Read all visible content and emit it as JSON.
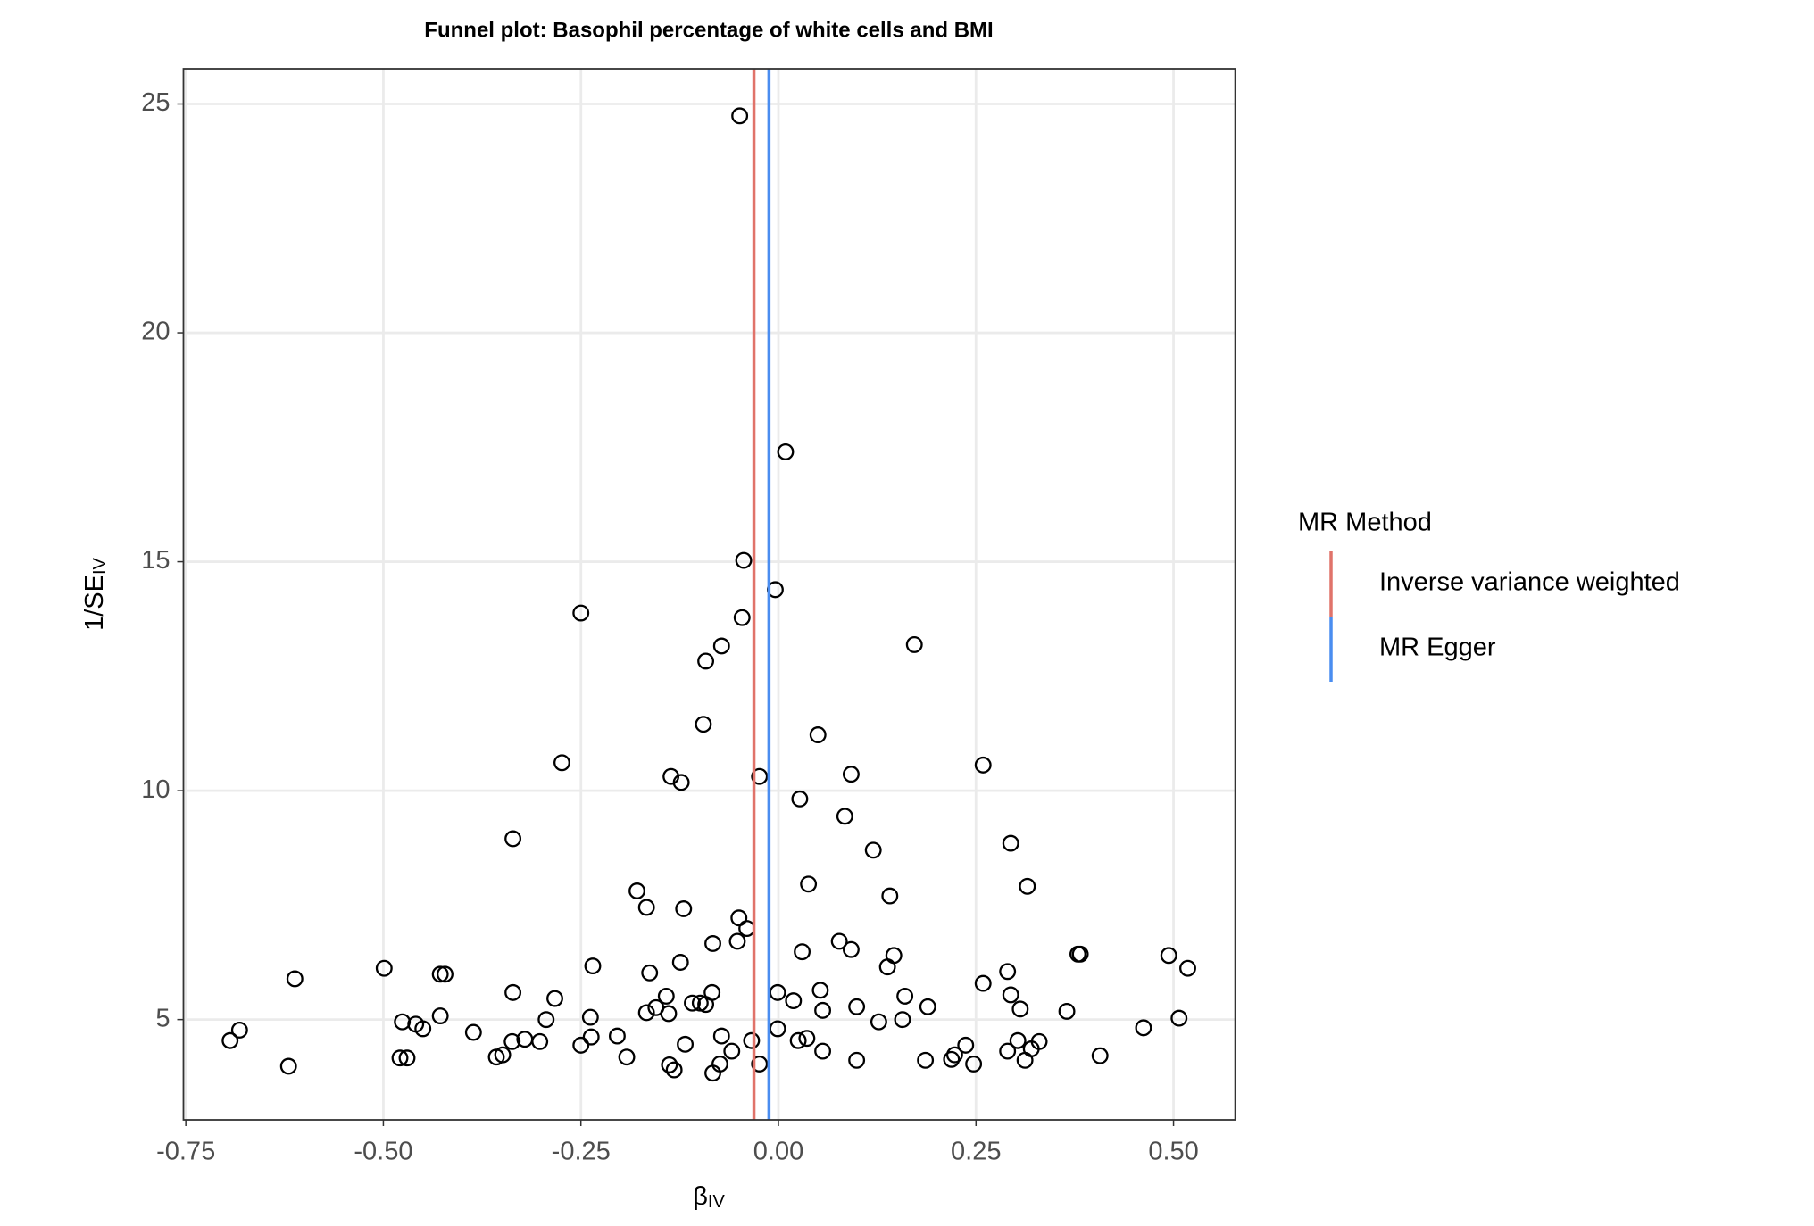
{
  "chart_data": {
    "type": "scatter",
    "title": "Funnel plot: Basophil percentage of white cells and BMI",
    "xlabel": "β",
    "xlabel_sub": "IV",
    "ylabel": "1/SE",
    "ylabel_sub": "IV",
    "xlim": [
      -0.753,
      0.578
    ],
    "ylim": [
      2.81,
      25.77
    ],
    "xticks": [
      {
        "value": -0.75,
        "label": "-0.75"
      },
      {
        "value": -0.5,
        "label": "-0.50"
      },
      {
        "value": -0.25,
        "label": "-0.25"
      },
      {
        "value": 0,
        "label": "0.00"
      },
      {
        "value": 0.25,
        "label": "0.25"
      },
      {
        "value": 0.5,
        "label": "0.50"
      }
    ],
    "yticks": [
      5,
      10,
      15,
      20,
      25
    ],
    "grid": true,
    "marker_color": "#000000",
    "x": [
      -0.049,
      0.009,
      -0.044,
      -0.004,
      -0.25,
      -0.046,
      -0.072,
      0.172,
      -0.092,
      -0.095,
      0.05,
      -0.274,
      0.259,
      -0.136,
      -0.024,
      -0.123,
      0.092,
      0.027,
      0.084,
      -0.336,
      0.294,
      0.12,
      0.038,
      0.315,
      -0.179,
      0.141,
      -0.167,
      -0.12,
      -0.05,
      -0.04,
      -0.083,
      -0.052,
      0.077,
      0.092,
      0.03,
      0.146,
      0.379,
      0.382,
      0.494,
      -0.124,
      0.138,
      -0.235,
      -0.499,
      0.518,
      -0.612,
      -0.428,
      -0.422,
      -0.163,
      0.29,
      0.259,
      -0.336,
      -0.001,
      -0.084,
      0.053,
      -0.142,
      0.294,
      0.16,
      -0.283,
      -0.109,
      -0.099,
      -0.092,
      0.019,
      0.189,
      0.099,
      0.056,
      0.306,
      0.365,
      -0.155,
      -0.167,
      -0.139,
      -0.428,
      -0.238,
      0.507,
      -0.294,
      0.157,
      -0.476,
      -0.459,
      0.127,
      -0.45,
      -0.682,
      0.462,
      -0.001,
      -0.386,
      -0.694,
      -0.204,
      -0.237,
      -0.072,
      0.036,
      0.025,
      -0.034,
      -0.321,
      -0.302,
      -0.337,
      0.303,
      0.33,
      -0.118,
      0.237,
      -0.25,
      0.32,
      -0.059,
      0.056,
      0.29,
      -0.47,
      -0.479,
      -0.357,
      -0.349,
      -0.192,
      0.407,
      0.223,
      0.219,
      0.099,
      0.186,
      0.312,
      -0.074,
      -0.138,
      -0.024,
      0.247,
      -0.62,
      -0.132,
      -0.083
    ],
    "values": [
      24.74,
      17.4,
      15.03,
      14.39,
      13.88,
      13.78,
      13.16,
      13.19,
      12.83,
      11.45,
      11.22,
      10.61,
      10.56,
      10.31,
      10.31,
      10.18,
      10.36,
      9.82,
      9.44,
      8.95,
      8.85,
      8.7,
      7.96,
      7.91,
      7.81,
      7.7,
      7.45,
      7.42,
      7.22,
      6.99,
      6.66,
      6.71,
      6.71,
      6.53,
      6.48,
      6.4,
      6.43,
      6.43,
      6.4,
      6.25,
      6.15,
      6.17,
      6.12,
      6.12,
      5.89,
      5.99,
      5.99,
      6.02,
      6.05,
      5.79,
      5.59,
      5.59,
      5.59,
      5.64,
      5.51,
      5.54,
      5.51,
      5.46,
      5.36,
      5.36,
      5.33,
      5.41,
      5.28,
      5.28,
      5.2,
      5.23,
      5.18,
      5.26,
      5.15,
      5.13,
      5.08,
      5.05,
      5.03,
      5.0,
      5.0,
      4.95,
      4.9,
      4.95,
      4.8,
      4.77,
      4.82,
      4.8,
      4.72,
      4.54,
      4.64,
      4.62,
      4.64,
      4.59,
      4.54,
      4.54,
      4.57,
      4.52,
      4.52,
      4.54,
      4.52,
      4.46,
      4.44,
      4.44,
      4.36,
      4.31,
      4.31,
      4.31,
      4.16,
      4.16,
      4.18,
      4.23,
      4.18,
      4.21,
      4.23,
      4.13,
      4.11,
      4.11,
      4.11,
      4.03,
      4.01,
      4.03,
      4.03,
      3.98,
      3.9,
      3.83
    ],
    "legend_title": "MR Method",
    "lines": [
      {
        "name": "Inverse variance weighted",
        "color": "#e0736a",
        "x": -0.031
      },
      {
        "name": "MR Egger",
        "color": "#4a8df0",
        "x": -0.012
      }
    ]
  }
}
